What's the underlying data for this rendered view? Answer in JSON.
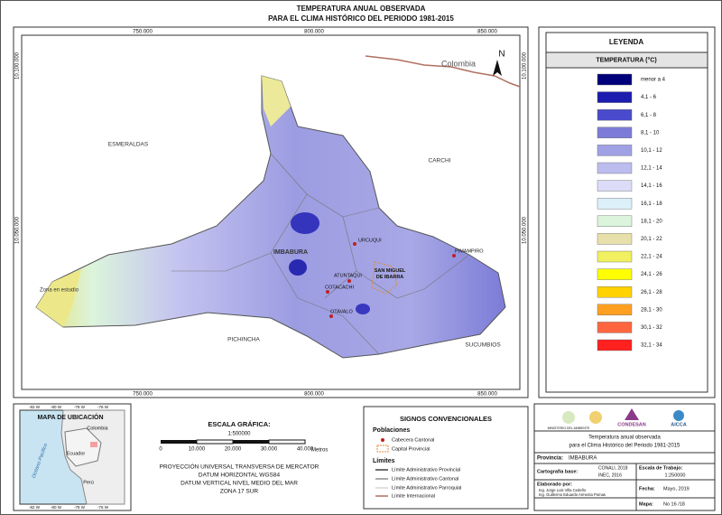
{
  "title": {
    "line1": "TEMPERATURA ANUAL OBSERVADA",
    "line2": "PARA EL CLIMA HISTÓRICO DEL PERIODO 1981-2015"
  },
  "map": {
    "x_coords": [
      "750.000",
      "800.000",
      "850.000"
    ],
    "y_coords": [
      "10.100.000",
      "10.050.000"
    ],
    "north": "N",
    "regions": {
      "colombia": "Colombia",
      "esmeraldas": "ESMERALDAS",
      "carchi": "CARCHI",
      "imbabura": "IMBABURA",
      "pichincha": "PICHINCHA",
      "sucumbios": "SUCUMBIOS",
      "study_zone": "Zona en estudio"
    },
    "towns": {
      "urcuqui": "URCUQUI",
      "pimampiro": "PIMAMPIRO",
      "atuntaqui": "ATUNTAQUI",
      "cotacachi": "COTACACHI",
      "otavalo": "OTAVALO",
      "ibarra": "SAN MIGUEL DE IBARRA"
    }
  },
  "legend": {
    "title": "LEYENDA",
    "subtitle": "TEMPERATURA (°C)",
    "items": [
      {
        "label": "menor a 4",
        "color": "#00007a"
      },
      {
        "label": "4,1 - 6",
        "color": "#1c1cae"
      },
      {
        "label": "6,1 - 8",
        "color": "#4a4acc"
      },
      {
        "label": "8,1 - 10",
        "color": "#7c7cd8"
      },
      {
        "label": "10,1 - 12",
        "color": "#a0a0e4"
      },
      {
        "label": "12,1 - 14",
        "color": "#bcbcee"
      },
      {
        "label": "14,1 - 16",
        "color": "#dcdcf8"
      },
      {
        "label": "16,1 - 18",
        "color": "#dcf0fa"
      },
      {
        "label": "18,1 - 20",
        "color": "#dcf4dc"
      },
      {
        "label": "20,1 - 22",
        "color": "#e8e0aa"
      },
      {
        "label": "22,1 - 24",
        "color": "#f0f060"
      },
      {
        "label": "24,1 - 26",
        "color": "#ffff00"
      },
      {
        "label": "26,1 - 28",
        "color": "#ffd200"
      },
      {
        "label": "28,1 - 30",
        "color": "#ffa020"
      },
      {
        "label": "30,1 - 32",
        "color": "#ff6640"
      },
      {
        "label": "32,1 - 34",
        "color": "#ff2020"
      }
    ]
  },
  "location_map": {
    "title": "MAPA DE UBICACIÓN",
    "countries": {
      "colombia": "Colombia",
      "ecuador": "Ecuador",
      "peru": "Perú"
    },
    "ocean": "Océano Pacífico",
    "lon_ticks": [
      "-82 W",
      "-80 W",
      "-78 W",
      "-76 W"
    ]
  },
  "scale": {
    "title": "ESCALA GRÁFICA:",
    "ratio": "1:500000",
    "ticks": [
      "0",
      "10.000",
      "20.000",
      "30.000",
      "40.000"
    ],
    "unit": "Metros",
    "projection": [
      "PROYECCIÓN UNIVERSAL TRANSVERSA DE MERCATOR",
      "DATUM HORIZONTAL WGS84",
      "DATUM VERTICAL NIVEL MEDIO DEL MAR",
      "ZONA 17 SUR"
    ]
  },
  "signs": {
    "title": "SIGNOS CONVENCIONALES",
    "populations": "Poblaciones",
    "cantonal": "Cabecera Cantonal",
    "provincial": "Capital Provincial",
    "limits": "Límites",
    "limit_provincial": "Límite Administrativo Provincial",
    "limit_cantonal": "Límite Administrativo Cantonal",
    "limit_parish": "Límite Administrativo Parroquial",
    "limit_international": "Límite Internacional"
  },
  "info": {
    "logo_ministry": "MINISTERIO DEL AMBIENTE",
    "logo_condesan": "CONDESAN",
    "logo_aicca": "AICCA",
    "description": [
      "Temperatura anual observada",
      "para el Clima Histórico del Periodo 1981-2015"
    ],
    "province_label": "Provincia:",
    "province": "IMBABURA",
    "base_label": "Cartografía base:",
    "base": [
      "CONALI, 2018",
      "INEC, 2016"
    ],
    "work_scale_label": "Escala de Trabajo:",
    "work_scale": "1:250000",
    "author_label": "Elaborado por:",
    "authors": [
      "Ing. Jorge Luis Villa Cedeño",
      "Ing. Guillermo Eduardo Armenta Pomas"
    ],
    "date_label": "Fecha:",
    "date": "Mayo, 2019",
    "map_label": "Mapa:",
    "map_number": "No 16 /18"
  }
}
